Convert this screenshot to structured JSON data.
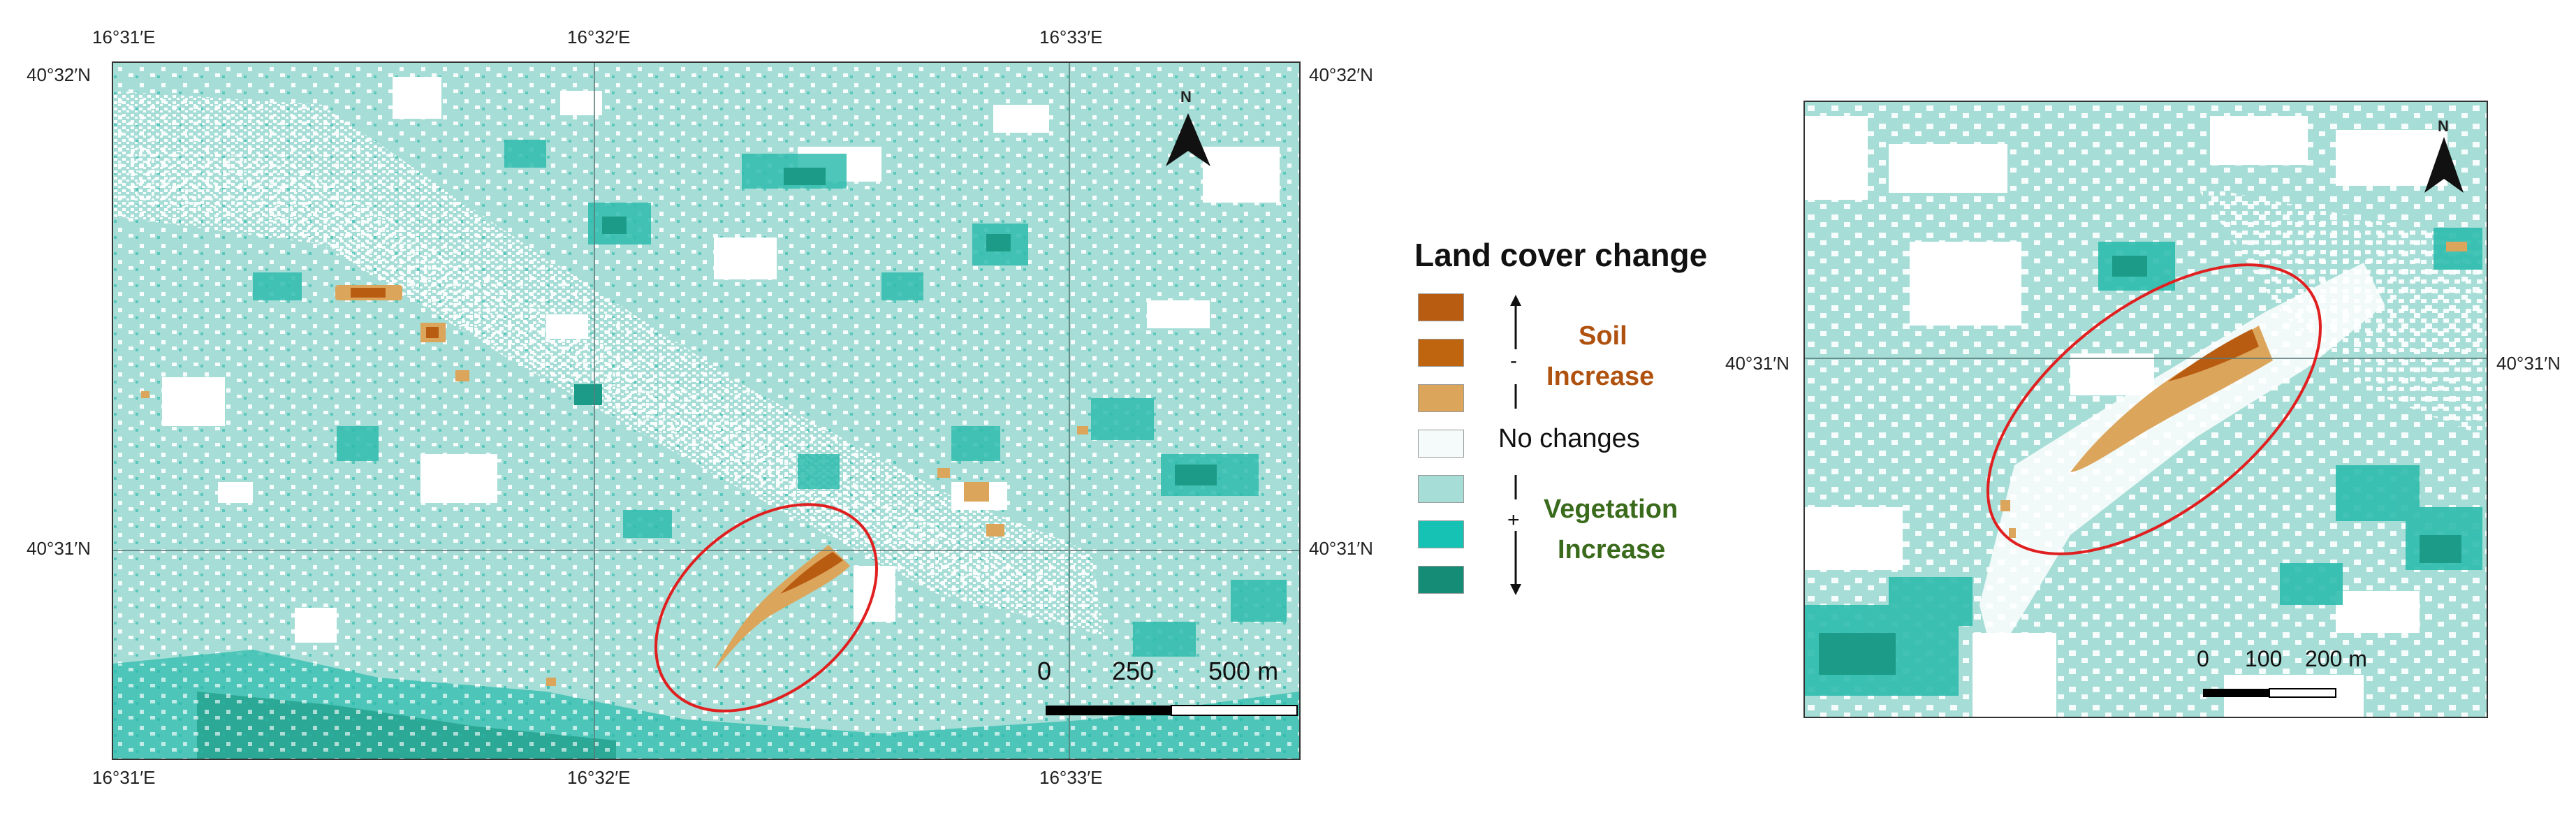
{
  "left_map": {
    "top_labels": [
      "16°31′E",
      "16°32′E",
      "16°33′E"
    ],
    "bottom_labels": [
      "16°31′E",
      "16°32′E",
      "16°33′E"
    ],
    "left_labels": [
      "40°32′N",
      "40°31′N"
    ],
    "right_labels": [
      "40°32′N",
      "40°31′N"
    ],
    "north": "N",
    "scale": {
      "ticks": [
        "0",
        "250",
        "500 m"
      ]
    }
  },
  "legend": {
    "title": "Land cover change",
    "soil_label_line1": "Soil",
    "soil_label_line2": "Increase",
    "no_change_label": "No changes",
    "veg_label_line1": "Vegetation",
    "veg_label_line2": "Increase",
    "minus_sign": "-",
    "plus_sign": "+",
    "colors": [
      "#b85c12",
      "#c0650f",
      "#dca55c",
      "#f5fbfb",
      "#a6ddd6",
      "#16c2b4",
      "#148c76"
    ],
    "soil_text_color": "#b0520f",
    "veg_text_color": "#3a6b1c"
  },
  "right_map": {
    "left_label": "40°31′N",
    "right_label": "40°31′N",
    "north": "N",
    "scale": {
      "ticks": [
        "0",
        "100",
        "200 m"
      ]
    }
  },
  "palette": {
    "base": "#a6ddd6",
    "white": "#ffffff",
    "teal_mid": "#2fbcae",
    "teal_dark": "#1c9c88",
    "soil_light": "#dca55c",
    "soil_dark": "#b85c12",
    "ellipse": "#e02020",
    "grid": "#5a7a78"
  }
}
